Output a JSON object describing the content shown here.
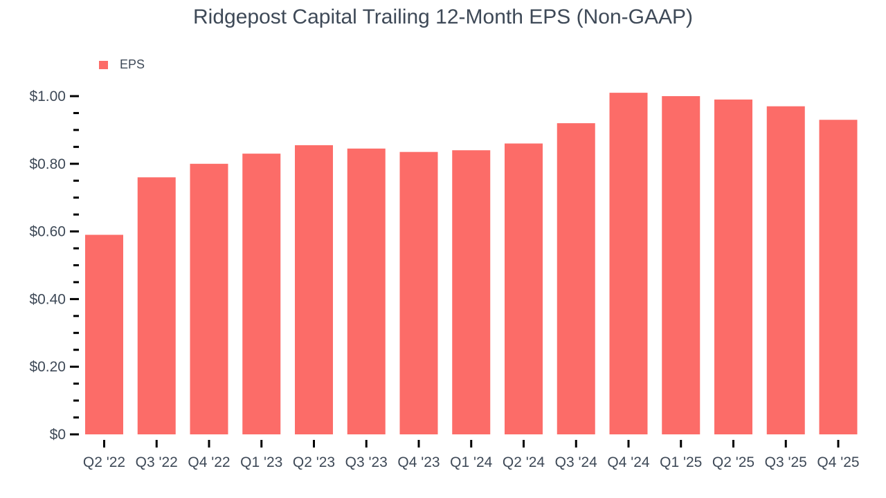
{
  "chart_data": {
    "type": "bar",
    "title": "Ridgepost Capital Trailing 12-Month EPS (Non-GAAP)",
    "categories": [
      "Q2 '22",
      "Q3 '22",
      "Q4 '22",
      "Q1 '23",
      "Q2 '23",
      "Q3 '23",
      "Q4 '23",
      "Q1 '24",
      "Q2 '24",
      "Q3 '24",
      "Q4 '24",
      "Q1 '25",
      "Q2 '25",
      "Q3 '25",
      "Q4 '25"
    ],
    "series": [
      {
        "name": "EPS",
        "color": "#fc6c68",
        "values": [
          0.59,
          0.76,
          0.8,
          0.83,
          0.855,
          0.845,
          0.835,
          0.84,
          0.86,
          0.92,
          1.01,
          1.0,
          0.99,
          0.97,
          0.93
        ]
      }
    ],
    "xlabel": "",
    "ylabel": "",
    "ylim": [
      0,
      1.05
    ],
    "y_major_ticks": [
      {
        "value": 1.0,
        "label": "$1.00"
      },
      {
        "value": 0.8,
        "label": "$0.80"
      },
      {
        "value": 0.6,
        "label": "$0.60"
      },
      {
        "value": 0.4,
        "label": "$0.40"
      },
      {
        "value": 0.2,
        "label": "$0.20"
      },
      {
        "value": 0.0,
        "label": "$0"
      }
    ],
    "y_minor_tick_step": 0.05,
    "grid": false,
    "legend_position": "top-left",
    "colors": {
      "background": "#ffffff",
      "bar": "#fc6c68",
      "text": "#3e4957",
      "tick": "#000000"
    }
  }
}
